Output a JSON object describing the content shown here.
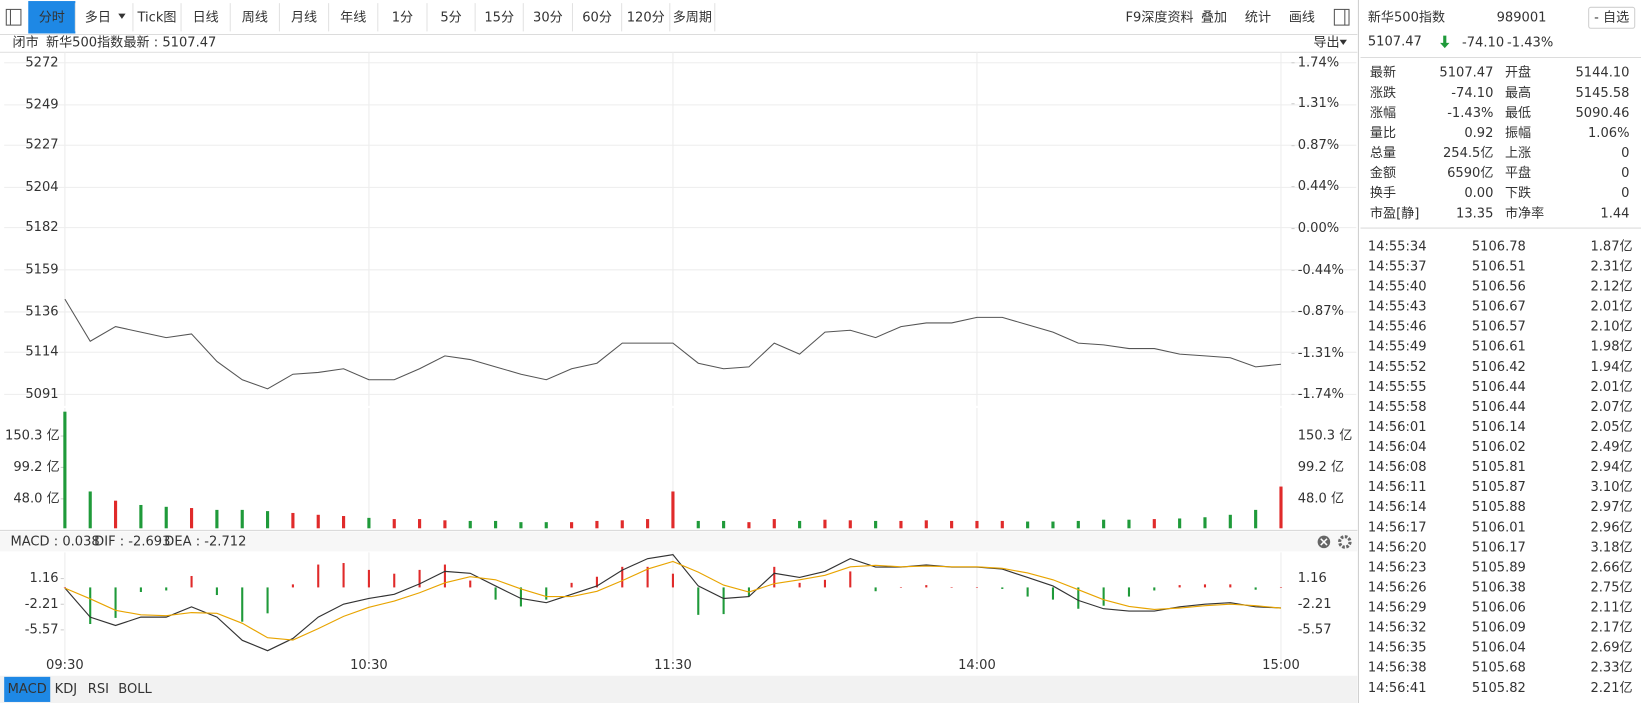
{
  "toolbar": {
    "tabs": [
      "分时",
      "多日",
      "Tick图",
      "日线",
      "周线",
      "月线",
      "年线",
      "1分",
      "5分",
      "15分",
      "30分",
      "60分",
      "120分",
      "多周期"
    ],
    "active": 0,
    "tools": [
      "F9深度资料",
      "叠加",
      "统计",
      "画线"
    ]
  },
  "info_bar": {
    "status": "闭市",
    "name": "新华500指数",
    "latest": "最新 : 5107.47",
    "export": "导出"
  },
  "quote": {
    "name": "新华500指数",
    "code": "989001",
    "watch": "- 自选",
    "price": "5107.47",
    "change": "-74.10",
    "change_pct": "-1.43%",
    "color": "#1f9a3a",
    "title_color": "#e8871e",
    "stats": [
      [
        {
          "label": "最新",
          "value": "5107.47",
          "color": "#1f9a3a"
        },
        {
          "label": "开盘",
          "value": "5144.10",
          "color": "#1f9a3a"
        }
      ],
      [
        {
          "label": "涨跌",
          "value": "-74.10",
          "color": "#1f9a3a"
        },
        {
          "label": "最高",
          "value": "5145.58",
          "color": "#1f9a3a"
        }
      ],
      [
        {
          "label": "涨幅",
          "value": "-1.43%",
          "color": "#1f9a3a"
        },
        {
          "label": "最低",
          "value": "5090.46",
          "color": "#1f9a3a"
        }
      ],
      [
        {
          "label": "量比",
          "value": "0.92",
          "color": "#222"
        },
        {
          "label": "振幅",
          "value": "1.06%",
          "color": "#222"
        }
      ],
      [
        {
          "label": "总量",
          "value": "254.5亿",
          "color": "#222"
        },
        {
          "label": "上涨",
          "value": "0",
          "color": "#e02a2a"
        }
      ],
      [
        {
          "label": "金额",
          "value": "6590亿",
          "color": "#222"
        },
        {
          "label": "平盘",
          "value": "0",
          "color": "#222"
        }
      ],
      [
        {
          "label": "换手",
          "value": "0.00",
          "color": "#222"
        },
        {
          "label": "下跌",
          "value": "0",
          "color": "#1f9a3a"
        }
      ],
      [
        {
          "label": "市盈[静]",
          "value": "13.35",
          "color": "#222"
        },
        {
          "label": "市净率",
          "value": "1.44",
          "color": "#222"
        }
      ]
    ]
  },
  "trades": {
    "amount_color": "#1e6fd6",
    "rows": [
      [
        "14:55:34",
        "5106.78",
        "1.87亿"
      ],
      [
        "14:55:37",
        "5106.51",
        "2.31亿"
      ],
      [
        "14:55:40",
        "5106.56",
        "2.12亿"
      ],
      [
        "14:55:43",
        "5106.67",
        "2.01亿"
      ],
      [
        "14:55:46",
        "5106.57",
        "2.10亿"
      ],
      [
        "14:55:49",
        "5106.61",
        "1.98亿"
      ],
      [
        "14:55:52",
        "5106.42",
        "1.94亿"
      ],
      [
        "14:55:55",
        "5106.44",
        "2.01亿"
      ],
      [
        "14:55:58",
        "5106.44",
        "2.07亿"
      ],
      [
        "14:56:01",
        "5106.14",
        "2.05亿"
      ],
      [
        "14:56:04",
        "5106.02",
        "2.49亿"
      ],
      [
        "14:56:08",
        "5105.81",
        "2.94亿"
      ],
      [
        "14:56:11",
        "5105.87",
        "3.10亿"
      ],
      [
        "14:56:14",
        "5105.88",
        "2.97亿"
      ],
      [
        "14:56:17",
        "5106.01",
        "2.96亿"
      ],
      [
        "14:56:20",
        "5106.17",
        "3.18亿"
      ],
      [
        "14:56:23",
        "5105.89",
        "2.66亿"
      ],
      [
        "14:56:26",
        "5106.38",
        "2.75亿"
      ],
      [
        "14:56:29",
        "5106.06",
        "2.11亿"
      ],
      [
        "14:56:32",
        "5106.09",
        "2.17亿"
      ],
      [
        "14:56:35",
        "5106.04",
        "2.69亿"
      ],
      [
        "14:56:38",
        "5105.68",
        "2.33亿"
      ],
      [
        "14:56:41",
        "5105.82",
        "2.21亿"
      ]
    ]
  },
  "indicator_tabs": {
    "tabs": [
      "MACD",
      "KDJ",
      "RSI",
      "BOLL"
    ],
    "active": 0
  },
  "chart_data": [
    {
      "type": "line",
      "color": "#555555",
      "up_color": "#e02a2a",
      "down_color": "#1f9a3a",
      "grid": true,
      "values": [
        5143,
        5120,
        5128,
        5125,
        5122,
        5124,
        5109,
        5099,
        5094,
        5102,
        5103,
        5105,
        5099,
        5099,
        5105,
        5112,
        5110,
        5106,
        5102,
        5099,
        5105,
        5108,
        5119,
        5119,
        5119,
        5108,
        5105,
        5106,
        5119,
        5113,
        5125,
        5126,
        5122,
        5128,
        5130,
        5130,
        5133,
        5133,
        5129,
        5125,
        5119,
        5118,
        5116,
        5116,
        5113,
        5112,
        5111,
        5106,
        5107.47
      ],
      "ylim": [
        5091,
        5272
      ],
      "yticks": [
        5272,
        5249,
        5227,
        5204,
        5182,
        5159,
        5136,
        5114,
        5091
      ],
      "y2lim": [
        -1.74,
        1.74
      ],
      "y2ticks": [
        {
          "value": 1.74,
          "label": "1.74%"
        },
        {
          "value": 1.31,
          "label": "1.31%"
        },
        {
          "value": 0.87,
          "label": "0.87%"
        },
        {
          "value": 0.44,
          "label": "0.44%"
        },
        {
          "value": 0.0,
          "label": "0.00%"
        },
        {
          "value": -0.44,
          "label": "-0.44%"
        },
        {
          "value": -0.87,
          "label": "-0.87%"
        },
        {
          "value": -1.31,
          "label": "-1.31%"
        },
        {
          "value": -1.74,
          "label": "-1.74%"
        }
      ]
    },
    {
      "type": "bar",
      "up_color": "#e02a2a",
      "down_color": "#1f9a3a",
      "values": [
        190,
        60,
        45,
        38,
        35,
        33,
        30,
        30,
        28,
        25,
        22,
        20,
        17,
        15,
        15,
        13,
        12,
        12,
        10,
        10,
        10,
        12,
        13,
        15,
        60,
        12,
        12,
        10,
        15,
        12,
        14,
        13,
        12,
        12,
        13,
        12,
        12,
        12,
        11,
        11,
        12,
        14,
        14,
        15,
        16,
        18,
        22,
        30,
        68
      ],
      "ylim": [
        0,
        196
      ],
      "yticks": [
        {
          "value": 150.3,
          "label": "150.3 亿"
        },
        {
          "value": 99.2,
          "label": "99.2 亿"
        },
        {
          "value": 48.0,
          "label": "48.0 亿"
        }
      ]
    },
    {
      "type": "macd",
      "legend": [
        {
          "text": "MACD : 0.038",
          "color": "#e040c8"
        },
        {
          "text": "DIF : -2.693",
          "color": "#333333"
        },
        {
          "text": "DEA : -2.712",
          "color": "#e8a400"
        }
      ],
      "categories": [
        "09:30",
        null,
        null,
        null,
        null,
        null,
        null,
        null,
        null,
        null,
        null,
        null,
        "10:30",
        null,
        null,
        null,
        null,
        null,
        null,
        null,
        null,
        null,
        null,
        null,
        "11:30",
        null,
        null,
        null,
        null,
        null,
        null,
        null,
        null,
        null,
        null,
        null,
        "14:00",
        null,
        null,
        null,
        null,
        null,
        null,
        null,
        null,
        null,
        null,
        null,
        "15:00"
      ],
      "series": [
        {
          "color": "#333333",
          "values": [
            -0.08,
            -3.9,
            -5.0,
            -3.9,
            -3.9,
            -2.55,
            -3.9,
            -6.95,
            -8.3,
            -6.7,
            -3.9,
            -2.2,
            -1.45,
            -0.9,
            0.47,
            2.1,
            1.85,
            0.2,
            -1.45,
            -2.0,
            -0.9,
            0.2,
            2.26,
            3.77,
            4.3,
            0.2,
            -1.45,
            -1.2,
            1.85,
            1.3,
            2.1,
            3.77,
            2.67,
            2.67,
            2.95,
            2.67,
            2.67,
            2.4,
            1.3,
            0.2,
            -1.7,
            -2.8,
            -3.1,
            -3.1,
            -2.55,
            -2.2,
            -2.0,
            -2.55,
            -2.693
          ]
        },
        {
          "color": "#e8a400",
          "values": [
            -0.1,
            -1.5,
            -3.0,
            -3.6,
            -3.7,
            -3.3,
            -3.4,
            -4.7,
            -6.6,
            -6.9,
            -5.4,
            -3.8,
            -2.6,
            -1.8,
            -0.7,
            0.6,
            1.4,
            1.0,
            -0.2,
            -1.2,
            -1.2,
            -0.5,
            0.9,
            2.4,
            3.4,
            2.0,
            0.3,
            -0.6,
            0.5,
            1.0,
            1.6,
            2.7,
            2.9,
            2.7,
            2.8,
            2.7,
            2.7,
            2.5,
            1.9,
            1.0,
            -0.3,
            -1.6,
            -2.5,
            -2.9,
            -2.7,
            -2.4,
            -2.2,
            -2.4,
            -2.712
          ]
        }
      ],
      "bars": {
        "up_color": "#e02a2a",
        "down_color": "#1f9a3a",
        "values": [
          0.04,
          -4.8,
          -4.0,
          -0.6,
          -0.4,
          1.5,
          -1.0,
          -4.5,
          -3.4,
          0.4,
          3.0,
          3.2,
          2.3,
          1.8,
          2.3,
          3.0,
          0.9,
          -1.6,
          -2.5,
          -1.6,
          0.6,
          1.4,
          2.7,
          2.7,
          1.8,
          -3.6,
          -3.5,
          -1.2,
          2.7,
          0.6,
          1.0,
          2.1,
          -0.5,
          0,
          0.3,
          0,
          0,
          -0.2,
          -1.2,
          -1.6,
          -2.8,
          -2.4,
          -1.2,
          -0.4,
          0.3,
          0.4,
          0.4,
          -0.3,
          0.038
        ]
      },
      "ylim": [
        -9.4,
        4.6
      ],
      "yticks": [
        1.16,
        -2.21,
        -5.57
      ]
    }
  ]
}
